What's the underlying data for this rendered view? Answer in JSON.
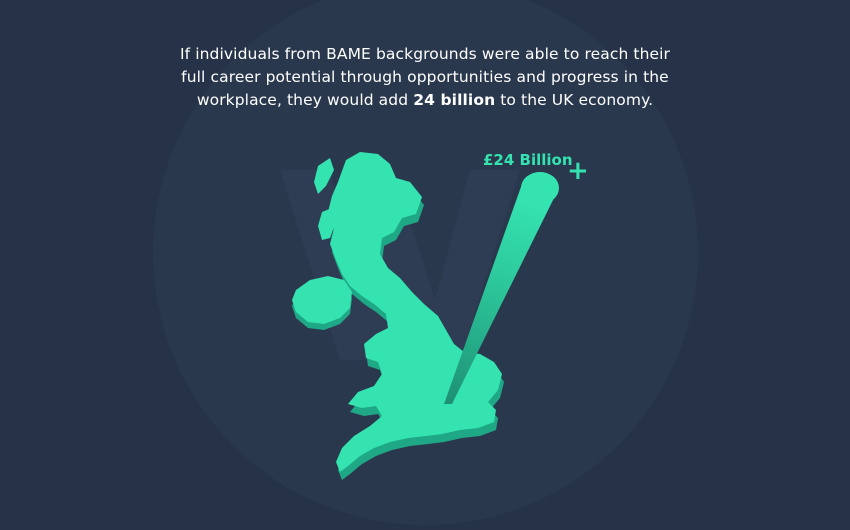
{
  "headline": {
    "line1": "If individuals from BAME backgrounds were able to reach their",
    "line2": "full career potential through opportunities and progress in the",
    "line3_before": "workplace, they would add ",
    "line3_bold": "24 billion",
    "line3_after": " to the UK economy."
  },
  "callout": {
    "amount": "£24 Billion",
    "plus": "+"
  },
  "colors": {
    "background": "#263248",
    "accent": "#35e3b0",
    "accent_shadow": "#1fa886"
  },
  "icons": {
    "watermark": "w-logo-watermark",
    "map": "uk-map-icon",
    "bar": "value-beam-icon"
  }
}
